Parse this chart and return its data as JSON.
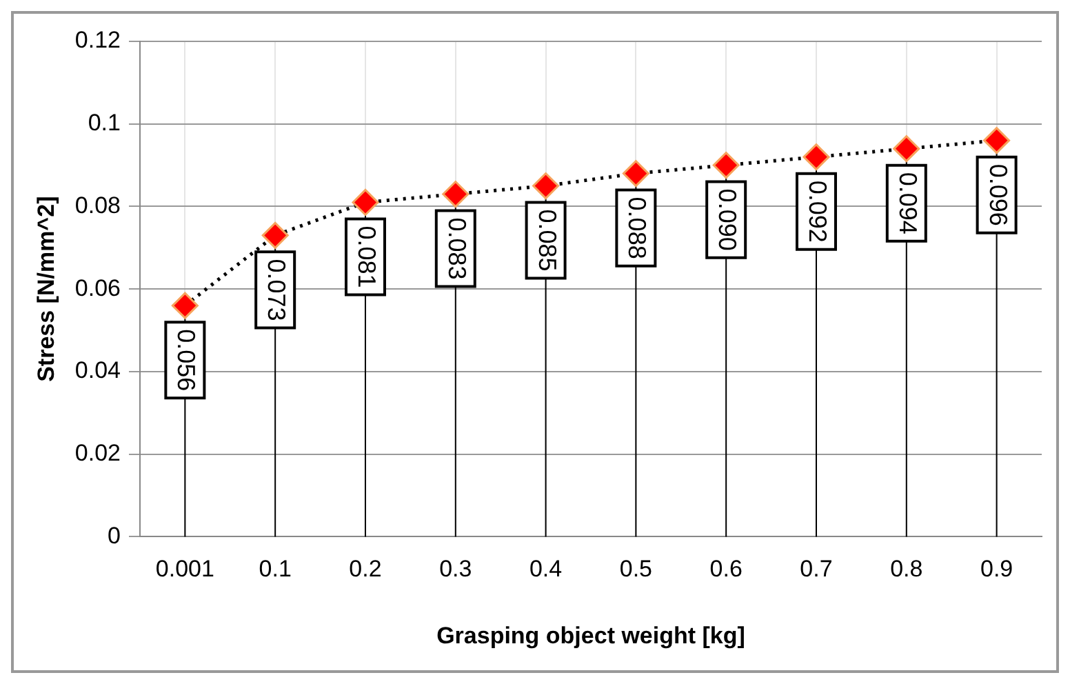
{
  "chart_data": {
    "type": "line",
    "xlabel": "Grasping object weight [kg]",
    "ylabel": "Stress [N/mm^2]",
    "categories": [
      "0.001",
      "0.1",
      "0.2",
      "0.3",
      "0.4",
      "0.5",
      "0.6",
      "0.7",
      "0.8",
      "0.9"
    ],
    "series": [
      {
        "color": "#ff0000",
        "values": [
          0.056,
          0.073,
          0.081,
          0.083,
          0.085,
          0.088,
          0.09,
          0.092,
          0.094,
          0.096
        ],
        "value_labels": [
          "0.056",
          "0.073",
          "0.081",
          "0.083",
          "0.085",
          "0.088",
          "0.090",
          "0.092",
          "0.094",
          "0.096"
        ]
      }
    ],
    "ylim": [
      0,
      0.12
    ],
    "yticks": [
      0,
      0.02,
      0.04,
      0.06,
      0.08,
      0.1,
      0.12
    ],
    "grid": true,
    "legend": false,
    "marker": "diamond",
    "line_style": "dotted"
  }
}
